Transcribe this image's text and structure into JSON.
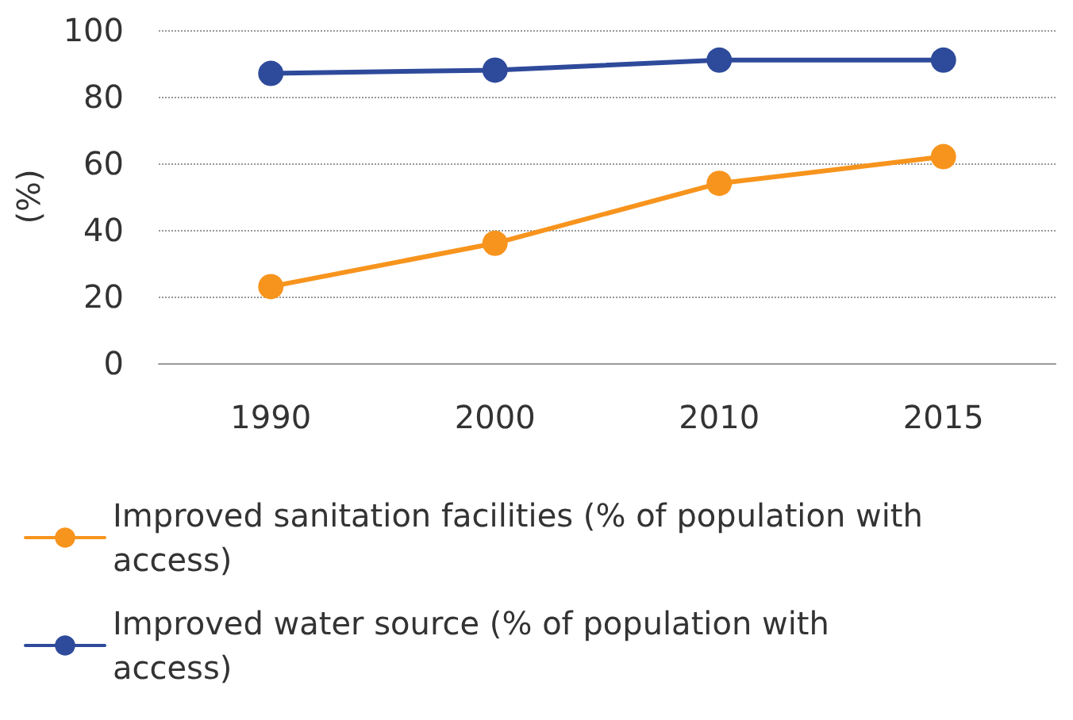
{
  "chart_data": {
    "type": "line",
    "ylabel": "(%)",
    "categories": [
      "1990",
      "2000",
      "2010",
      "2015"
    ],
    "series": [
      {
        "name": "Improved sanitation facilities (% of population with access)",
        "color": "#f7941d",
        "values": [
          23,
          36,
          54,
          62
        ]
      },
      {
        "name": "Improved water source (% of population with access)",
        "color": "#2e4a9b",
        "values": [
          87,
          88,
          91,
          91
        ]
      }
    ],
    "ylim": [
      0,
      100
    ],
    "yticks": [
      0,
      20,
      40,
      60,
      80,
      100
    ],
    "grid": "y",
    "legend": "bottom",
    "marker": "circle",
    "line_style": "solid"
  }
}
